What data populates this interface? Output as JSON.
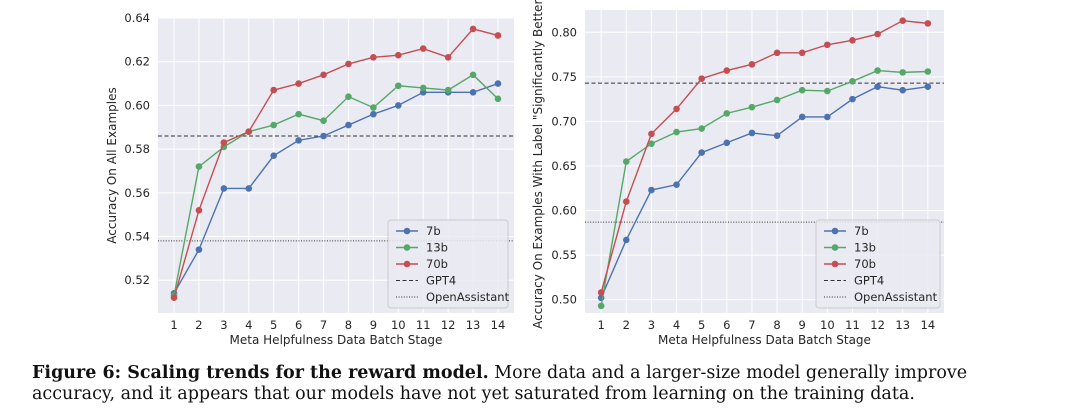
{
  "chart_data": [
    {
      "type": "line",
      "xlabel": "Meta Helpfulness Data Batch Stage",
      "ylabel": "Accuracy On All Examples",
      "x": [
        1,
        2,
        3,
        4,
        5,
        6,
        7,
        8,
        9,
        10,
        11,
        12,
        13,
        14
      ],
      "ylim": [
        0.505,
        0.64
      ],
      "yticks": [
        0.52,
        0.54,
        0.56,
        0.58,
        0.6,
        0.62,
        0.64
      ],
      "ytick_labels": [
        "0.52",
        "0.54",
        "0.56",
        "0.58",
        "0.60",
        "0.62",
        "0.64"
      ],
      "grid": true,
      "legend_position": "bottom-right",
      "series": [
        {
          "name": "7b",
          "color": "#4c72b0",
          "values": [
            0.514,
            0.534,
            0.562,
            0.562,
            0.577,
            0.584,
            0.586,
            0.591,
            0.596,
            0.6,
            0.606,
            0.606,
            0.606,
            0.61
          ]
        },
        {
          "name": "13b",
          "color": "#55a868",
          "values": [
            0.513,
            0.572,
            0.581,
            0.588,
            0.591,
            0.596,
            0.593,
            0.604,
            0.599,
            0.609,
            0.608,
            0.607,
            0.614,
            0.603
          ]
        },
        {
          "name": "70b",
          "color": "#c44e52",
          "values": [
            0.512,
            0.552,
            0.583,
            0.588,
            0.607,
            0.61,
            0.614,
            0.619,
            0.622,
            0.623,
            0.626,
            0.622,
            0.635,
            0.632
          ]
        }
      ],
      "hlines": [
        {
          "name": "GPT4",
          "value": 0.586,
          "style": "dashed"
        },
        {
          "name": "OpenAssistant",
          "value": 0.538,
          "style": "dotted"
        }
      ]
    },
    {
      "type": "line",
      "xlabel": "Meta Helpfulness Data Batch Stage",
      "ylabel": "Accuracy On Examples With Label \"Significantly Better\"",
      "x": [
        1,
        2,
        3,
        4,
        5,
        6,
        7,
        8,
        9,
        10,
        11,
        12,
        13,
        14
      ],
      "ylim": [
        0.485,
        0.825
      ],
      "yticks": [
        0.5,
        0.55,
        0.6,
        0.65,
        0.7,
        0.75,
        0.8
      ],
      "ytick_labels": [
        "0.50",
        "0.55",
        "0.60",
        "0.65",
        "0.70",
        "0.75",
        "0.80"
      ],
      "grid": true,
      "legend_position": "bottom-right",
      "series": [
        {
          "name": "7b",
          "color": "#4c72b0",
          "values": [
            0.502,
            0.567,
            0.623,
            0.629,
            0.665,
            0.676,
            0.687,
            0.684,
            0.705,
            0.705,
            0.725,
            0.739,
            0.735,
            0.739
          ]
        },
        {
          "name": "13b",
          "color": "#55a868",
          "values": [
            0.493,
            0.655,
            0.675,
            0.688,
            0.692,
            0.709,
            0.716,
            0.724,
            0.735,
            0.734,
            0.745,
            0.757,
            0.755,
            0.756
          ]
        },
        {
          "name": "70b",
          "color": "#c44e52",
          "values": [
            0.508,
            0.61,
            0.686,
            0.714,
            0.748,
            0.757,
            0.764,
            0.777,
            0.777,
            0.786,
            0.791,
            0.798,
            0.813,
            0.81
          ]
        }
      ],
      "hlines": [
        {
          "name": "GPT4",
          "value": 0.743,
          "style": "dashed"
        },
        {
          "name": "OpenAssistant",
          "value": 0.587,
          "style": "dotted"
        }
      ]
    }
  ],
  "caption": {
    "label": "Figure 6: Scaling trends for the reward model.",
    "text": "More data and a larger-size model generally improve accuracy, and it appears that our models have not yet saturated from learning on the training data."
  }
}
